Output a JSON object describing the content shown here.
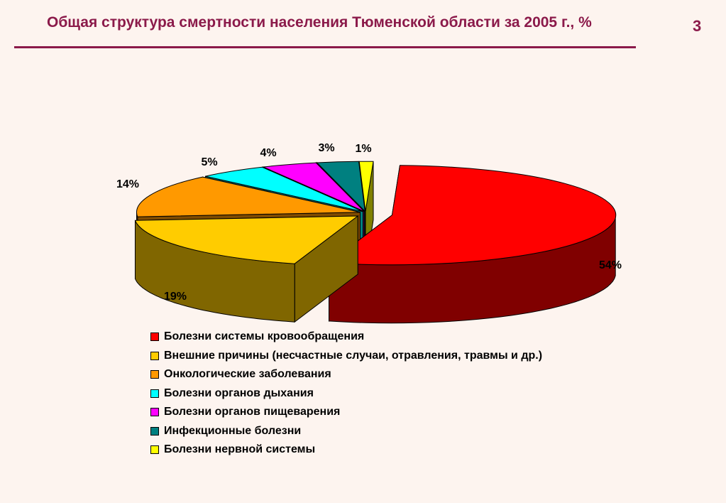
{
  "page": {
    "title": "Общая структура смертности населения  Тюменской области за 2005 г., %",
    "number": "3"
  },
  "chart_data": {
    "type": "pie",
    "three_d": true,
    "exploded": true,
    "categories": [
      "Болезни системы кровообращения",
      "Внешние причины (несчастные случаи, отравления, травмы и др.)",
      "Онкологические заболевания",
      "Болезни органов дыхания",
      "Болезни органов пищеварения",
      "Инфекционные болезни",
      "Болезни нервной системы"
    ],
    "values": [
      54,
      19,
      14,
      5,
      4,
      3,
      1
    ],
    "value_labels": [
      "54%",
      "19%",
      "14%",
      "5%",
      "4%",
      "3%",
      "1%"
    ],
    "colors": [
      "#ff0000",
      "#ffcc00",
      "#ff9900",
      "#00ffff",
      "#ff00ff",
      "#008080",
      "#ffff00"
    ],
    "side_colors": [
      "#800000",
      "#806600",
      "#804c00",
      "#008080",
      "#800080",
      "#004040",
      "#808000"
    ],
    "legend_position": "bottom"
  }
}
